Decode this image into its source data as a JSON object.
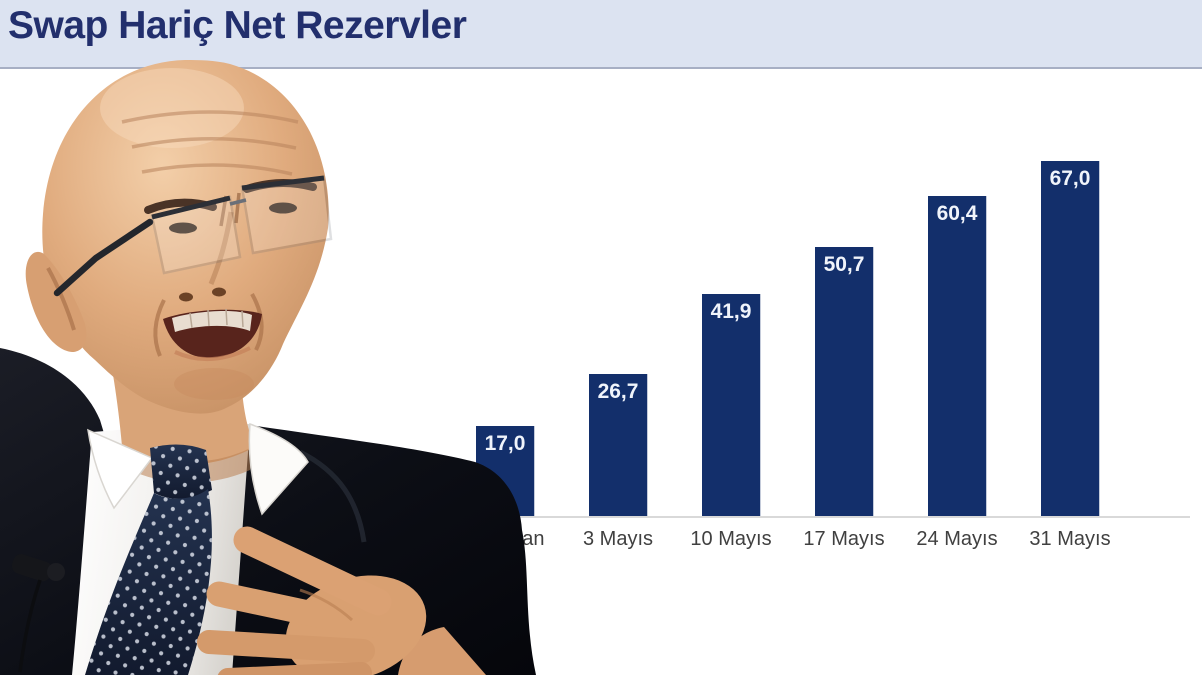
{
  "header": {
    "title": "Swap Hariç Net Rezervler"
  },
  "colors": {
    "header_bg": "#dce3f1",
    "header_border": "#a7afc4",
    "title_text": "#222f6d",
    "bar": "#132f6b",
    "bar_value_text": "#f0f4fb",
    "axis_label_text": "#404040",
    "baseline": "#d9d9d9",
    "background": "#ffffff"
  },
  "chart_data": {
    "type": "bar",
    "title": "Swap Hariç Net Rezervler",
    "categories": [
      "26 Nisan",
      "3 Mayıs",
      "10 Mayıs",
      "17 Mayıs",
      "24 Mayıs",
      "31 Mayıs"
    ],
    "values": [
      17.0,
      26.7,
      41.9,
      50.7,
      60.4,
      67.0
    ],
    "value_labels": [
      "17,0",
      "26,7",
      "41,9",
      "50,7",
      "60,4",
      "67,0"
    ],
    "xlabel": "",
    "ylabel": "",
    "ylim": [
      0,
      72
    ],
    "grid": false,
    "legend": false,
    "value_labels_position": "inside-top"
  }
}
